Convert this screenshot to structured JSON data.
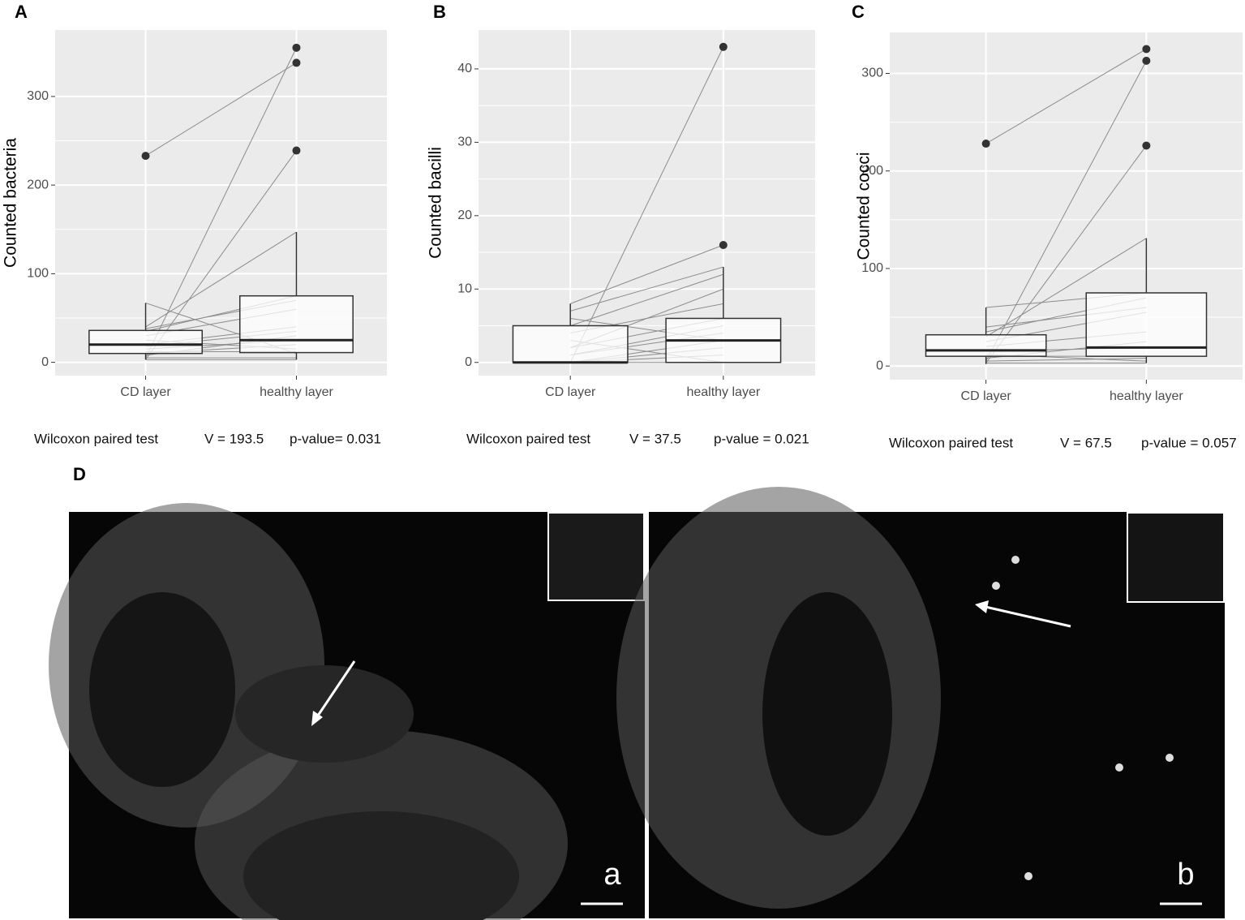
{
  "chart_data": [
    {
      "type": "box",
      "panel_label": "A",
      "y_label": "Counted bacteria",
      "categories": [
        "CD layer",
        "healthy layer"
      ],
      "boxes": [
        {
          "min": 3,
          "q1": 10,
          "median": 20,
          "q3": 36,
          "max": 67,
          "outliers": [
            233
          ]
        },
        {
          "min": 3,
          "q1": 11,
          "median": 25,
          "q3": 75,
          "max": 147,
          "outliers": [
            239,
            338,
            355
          ]
        }
      ],
      "pairs": [
        [
          233,
          338
        ],
        [
          5,
          355
        ],
        [
          3,
          239
        ],
        [
          40,
          147
        ],
        [
          35,
          75
        ],
        [
          30,
          60
        ],
        [
          20,
          40
        ],
        [
          15,
          25
        ],
        [
          10,
          20
        ],
        [
          67,
          10
        ],
        [
          8,
          30
        ],
        [
          25,
          15
        ],
        [
          12,
          12
        ],
        [
          5,
          5
        ],
        [
          38,
          70
        ],
        [
          18,
          35
        ],
        [
          3,
          3
        ]
      ],
      "ylim": [
        -15,
        375
      ],
      "yticks": [
        0,
        100,
        200,
        300
      ],
      "grid": true,
      "test": "Wilcoxon paired test",
      "statistic": "V = 193.5",
      "p_value": "p-value= 0.031"
    },
    {
      "type": "box",
      "panel_label": "B",
      "y_label": "Counted bacilli",
      "categories": [
        "CD layer",
        "healthy layer"
      ],
      "boxes": [
        {
          "min": 0,
          "q1": 0,
          "median": 0,
          "q3": 5,
          "max": 8,
          "outliers": []
        },
        {
          "min": 0,
          "q1": 0,
          "median": 3,
          "q3": 6,
          "max": 13,
          "outliers": [
            16,
            43
          ]
        }
      ],
      "pairs": [
        [
          0,
          43
        ],
        [
          8,
          16
        ],
        [
          7,
          13
        ],
        [
          5,
          12
        ],
        [
          4,
          8
        ],
        [
          2,
          6
        ],
        [
          1,
          5
        ],
        [
          0,
          3
        ],
        [
          0,
          2
        ],
        [
          0,
          1
        ],
        [
          3,
          0
        ],
        [
          0,
          0
        ],
        [
          1,
          4
        ],
        [
          2,
          10
        ],
        [
          6,
          3
        ]
      ],
      "ylim": [
        -1.8,
        45.3
      ],
      "yticks": [
        0,
        10,
        20,
        30,
        40
      ],
      "grid": true,
      "test": "Wilcoxon paired test",
      "statistic": "V = 37.5",
      "p_value": "p-value = 0.021"
    },
    {
      "type": "box",
      "panel_label": "C",
      "y_label": "Counted cocci",
      "categories": [
        "CD layer",
        "healthy layer"
      ],
      "boxes": [
        {
          "min": 2,
          "q1": 10,
          "median": 16,
          "q3": 32,
          "max": 60,
          "outliers": [
            228
          ]
        },
        {
          "min": 3,
          "q1": 10,
          "median": 19,
          "q3": 75,
          "max": 131,
          "outliers": [
            226,
            313,
            325
          ]
        }
      ],
      "pairs": [
        [
          228,
          325
        ],
        [
          5,
          313
        ],
        [
          3,
          226
        ],
        [
          30,
          131
        ],
        [
          60,
          75
        ],
        [
          35,
          70
        ],
        [
          25,
          55
        ],
        [
          20,
          35
        ],
        [
          15,
          19
        ],
        [
          10,
          10
        ],
        [
          12,
          5
        ],
        [
          8,
          25
        ],
        [
          5,
          8
        ],
        [
          3,
          3
        ],
        [
          40,
          60
        ]
      ],
      "ylim": [
        -14,
        342
      ],
      "yticks": [
        0,
        100,
        200,
        300
      ],
      "grid": true,
      "test": "Wilcoxon paired test",
      "statistic": "V = 67.5",
      "p_value": "p-value = 0.057"
    }
  ],
  "panel_d": {
    "label": "D",
    "images": [
      {
        "label": "a"
      },
      {
        "label": "b"
      }
    ]
  }
}
